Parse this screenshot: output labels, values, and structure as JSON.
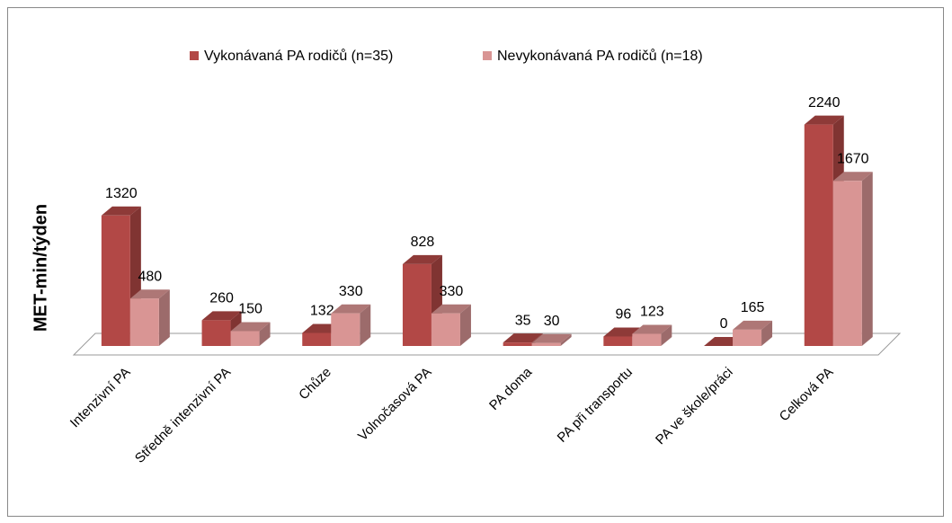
{
  "chart_data": {
    "type": "bar3d",
    "y_label": "MET-min/týden",
    "categories": [
      "Intenzivní PA",
      "Středně intenzivní PA",
      "Chůze",
      "Volnočasová PA",
      "PA doma",
      "PA při transportu",
      "PA ve škole/práci",
      "Celková PA"
    ],
    "series": [
      {
        "name": "Vykonávaná PA rodičů (n=35)",
        "color": "#b24846",
        "values": [
          1320,
          260,
          132,
          828,
          35,
          96,
          0,
          2240
        ]
      },
      {
        "name": "Nevykonávaná PA rodičů (n=18)",
        "color": "#d99594",
        "values": [
          480,
          150,
          330,
          330,
          30,
          123,
          165,
          1670
        ]
      }
    ],
    "legend": "top"
  }
}
